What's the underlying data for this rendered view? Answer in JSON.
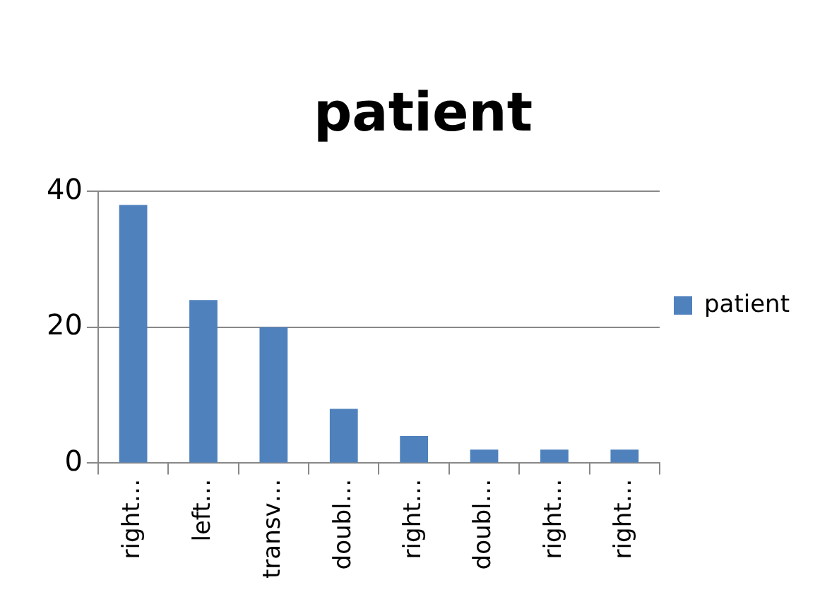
{
  "chart_data": {
    "type": "bar",
    "title": "patient",
    "categories": [
      "right…",
      "left…",
      "transv…",
      "doubl…",
      "right…",
      "doubl…",
      "right…",
      "right…"
    ],
    "series": [
      {
        "name": "patient",
        "color": "#4f81bd",
        "values": [
          38,
          24,
          20,
          8,
          4,
          2,
          2,
          2
        ]
      }
    ],
    "ylim": [
      0,
      40
    ],
    "yticks": [
      0,
      20,
      40
    ],
    "grid": "y",
    "legend": "right"
  }
}
